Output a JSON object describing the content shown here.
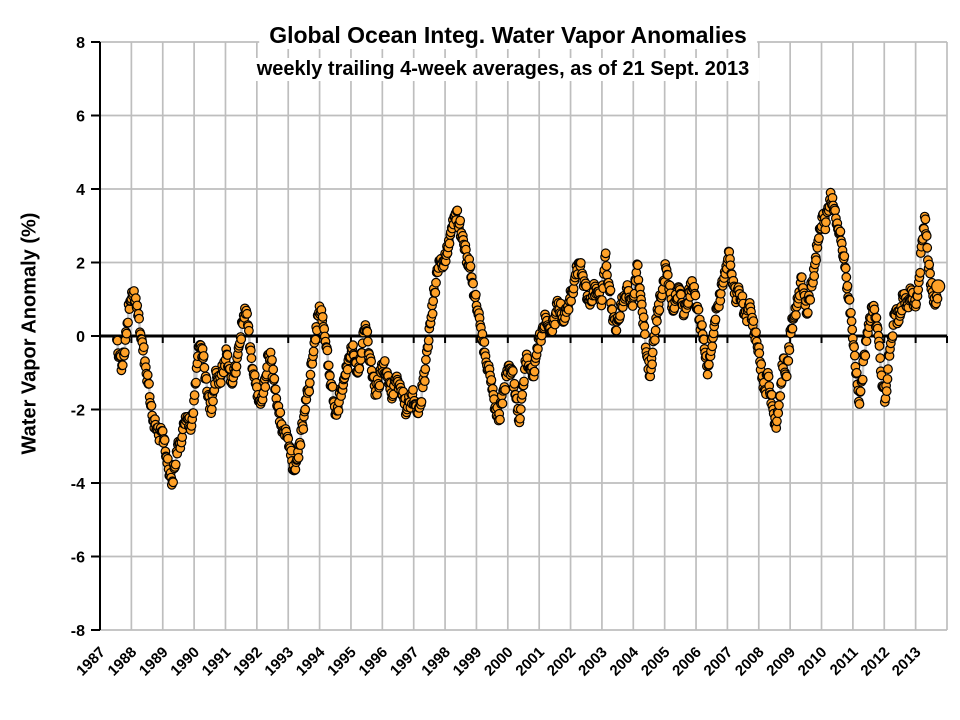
{
  "chart_data": {
    "type": "scatter",
    "title": "Global Ocean Integ. Water Vapor Anomalies",
    "subtitle": "weekly trailing 4-week averages, as of 21 Sept. 2013",
    "ylabel": "Water Vapor Anomaly (%)",
    "xlabel": "",
    "xlim": [
      1987,
      2014
    ],
    "ylim": [
      -8,
      8
    ],
    "ytick_step": 2,
    "ytick_labels": [
      "8",
      "6",
      "4",
      "2",
      "0",
      "-2",
      "-4",
      "-6",
      "-8"
    ],
    "xtick_labels": [
      "1987",
      "1988",
      "1989",
      "1990",
      "1991",
      "1992",
      "1993",
      "1994",
      "1995",
      "1996",
      "1997",
      "1998",
      "1999",
      "2000",
      "2001",
      "2002",
      "2003",
      "2004",
      "2005",
      "2006",
      "2007",
      "2008",
      "2009",
      "2010",
      "2011",
      "2012",
      "2013"
    ],
    "grid": true,
    "legend": "none",
    "series_name": "weekly trailing 4-week average water vapor anomaly",
    "points": [
      [
        1987.54,
        -0.1
      ],
      [
        1987.62,
        -0.55
      ],
      [
        1987.7,
        -0.8
      ],
      [
        1987.79,
        -0.45
      ],
      [
        1987.87,
        0.35
      ],
      [
        1987.96,
        0.95
      ],
      [
        1988.04,
        1.1
      ],
      [
        1988.12,
        0.95
      ],
      [
        1988.21,
        0.55
      ],
      [
        1988.29,
        0.05
      ],
      [
        1988.37,
        -0.4
      ],
      [
        1988.46,
        -0.85
      ],
      [
        1988.54,
        -1.3
      ],
      [
        1988.62,
        -1.9
      ],
      [
        1988.71,
        -2.3
      ],
      [
        1988.79,
        -2.55
      ],
      [
        1988.87,
        -2.7
      ],
      [
        1988.96,
        -2.6
      ],
      [
        1989.04,
        -2.8
      ],
      [
        1989.12,
        -3.3
      ],
      [
        1989.21,
        -3.8
      ],
      [
        1989.29,
        -4.05
      ],
      [
        1989.37,
        -3.6
      ],
      [
        1989.46,
        -3.2
      ],
      [
        1989.54,
        -2.9
      ],
      [
        1989.62,
        -2.75
      ],
      [
        1989.71,
        -2.4
      ],
      [
        1989.79,
        -2.2
      ],
      [
        1989.87,
        -2.5
      ],
      [
        1989.96,
        -2.1
      ],
      [
        1990.04,
        -1.3
      ],
      [
        1990.12,
        -0.55
      ],
      [
        1990.21,
        -0.25
      ],
      [
        1990.29,
        -0.6
      ],
      [
        1990.37,
        -1.1
      ],
      [
        1990.46,
        -1.6
      ],
      [
        1990.54,
        -2.1
      ],
      [
        1990.62,
        -1.5
      ],
      [
        1990.71,
        -1.0
      ],
      [
        1990.79,
        -1.3
      ],
      [
        1990.87,
        -1.05
      ],
      [
        1990.96,
        -0.7
      ],
      [
        1991.04,
        -0.5
      ],
      [
        1991.12,
        -0.9
      ],
      [
        1991.21,
        -1.3
      ],
      [
        1991.29,
        -1.0
      ],
      [
        1991.37,
        -0.6
      ],
      [
        1991.46,
        -0.2
      ],
      [
        1991.54,
        0.35
      ],
      [
        1991.62,
        0.75
      ],
      [
        1991.71,
        0.3
      ],
      [
        1991.79,
        -0.3
      ],
      [
        1991.87,
        -0.9
      ],
      [
        1991.96,
        -1.3
      ],
      [
        1992.04,
        -1.6
      ],
      [
        1992.12,
        -1.85
      ],
      [
        1992.21,
        -1.55
      ],
      [
        1992.29,
        -1.1
      ],
      [
        1992.37,
        -0.5
      ],
      [
        1992.46,
        -0.7
      ],
      [
        1992.54,
        -1.2
      ],
      [
        1992.62,
        -1.7
      ],
      [
        1992.71,
        -2.1
      ],
      [
        1992.79,
        -2.4
      ],
      [
        1992.87,
        -2.6
      ],
      [
        1992.96,
        -2.75
      ],
      [
        1993.04,
        -3.0
      ],
      [
        1993.12,
        -3.4
      ],
      [
        1993.21,
        -3.65
      ],
      [
        1993.29,
        -3.35
      ],
      [
        1993.37,
        -2.9
      ],
      [
        1993.46,
        -2.45
      ],
      [
        1993.54,
        -2.0
      ],
      [
        1993.62,
        -1.55
      ],
      [
        1993.71,
        -1.05
      ],
      [
        1993.79,
        -0.55
      ],
      [
        1993.87,
        -0.1
      ],
      [
        1993.96,
        0.55
      ],
      [
        1994.04,
        0.65
      ],
      [
        1994.12,
        0.25
      ],
      [
        1994.21,
        -0.3
      ],
      [
        1994.29,
        -0.8
      ],
      [
        1994.37,
        -1.3
      ],
      [
        1994.46,
        -1.8
      ],
      [
        1994.54,
        -2.15
      ],
      [
        1994.62,
        -1.8
      ],
      [
        1994.71,
        -1.45
      ],
      [
        1994.79,
        -1.15
      ],
      [
        1994.87,
        -0.85
      ],
      [
        1994.96,
        -0.6
      ],
      [
        1995.04,
        -0.35
      ],
      [
        1995.12,
        -0.7
      ],
      [
        1995.21,
        -1.0
      ],
      [
        1995.29,
        -0.6
      ],
      [
        1995.37,
        -0.2
      ],
      [
        1995.46,
        0.3
      ],
      [
        1995.54,
        -0.15
      ],
      [
        1995.62,
        -0.6
      ],
      [
        1995.71,
        -1.1
      ],
      [
        1995.79,
        -1.5
      ],
      [
        1995.87,
        -1.3
      ],
      [
        1995.96,
        -1.0
      ],
      [
        1996.04,
        -0.75
      ],
      [
        1996.12,
        -1.0
      ],
      [
        1996.21,
        -1.3
      ],
      [
        1996.29,
        -1.55
      ],
      [
        1996.37,
        -1.35
      ],
      [
        1996.46,
        -1.1
      ],
      [
        1996.54,
        -1.35
      ],
      [
        1996.62,
        -1.6
      ],
      [
        1996.71,
        -1.85
      ],
      [
        1996.79,
        -2.0
      ],
      [
        1996.87,
        -1.8
      ],
      [
        1996.96,
        -1.6
      ],
      [
        1997.04,
        -1.85
      ],
      [
        1997.12,
        -2.1
      ],
      [
        1997.21,
        -1.8
      ],
      [
        1997.29,
        -1.4
      ],
      [
        1997.37,
        -0.9
      ],
      [
        1997.46,
        -0.3
      ],
      [
        1997.54,
        0.35
      ],
      [
        1997.62,
        0.95
      ],
      [
        1997.71,
        1.45
      ],
      [
        1997.79,
        1.85
      ],
      [
        1997.87,
        2.1
      ],
      [
        1997.96,
        1.9
      ],
      [
        1998.04,
        2.2
      ],
      [
        1998.12,
        2.6
      ],
      [
        1998.21,
        2.95
      ],
      [
        1998.29,
        3.25
      ],
      [
        1998.37,
        3.4
      ],
      [
        1998.46,
        3.05
      ],
      [
        1998.54,
        2.65
      ],
      [
        1998.62,
        2.35
      ],
      [
        1998.71,
        2.15
      ],
      [
        1998.79,
        1.85
      ],
      [
        1998.87,
        1.45
      ],
      [
        1998.96,
        1.05
      ],
      [
        1999.04,
        0.7
      ],
      [
        1999.12,
        0.3
      ],
      [
        1999.21,
        -0.15
      ],
      [
        1999.29,
        -0.55
      ],
      [
        1999.37,
        -0.9
      ],
      [
        1999.46,
        -1.25
      ],
      [
        1999.54,
        -1.6
      ],
      [
        1999.62,
        -2.0
      ],
      [
        1999.71,
        -2.3
      ],
      [
        1999.79,
        -1.85
      ],
      [
        1999.87,
        -1.45
      ],
      [
        1999.96,
        -1.1
      ],
      [
        2000.04,
        -0.8
      ],
      [
        2000.12,
        -1.0
      ],
      [
        2000.21,
        -1.3
      ],
      [
        2000.29,
        -1.7
      ],
      [
        2000.37,
        -2.35
      ],
      [
        2000.46,
        -1.6
      ],
      [
        2000.54,
        -0.9
      ],
      [
        2000.62,
        -0.6
      ],
      [
        2000.71,
        -0.9
      ],
      [
        2000.79,
        -1.1
      ],
      [
        2000.87,
        -0.7
      ],
      [
        2000.96,
        -0.35
      ],
      [
        2001.04,
        -0.05
      ],
      [
        2001.12,
        0.25
      ],
      [
        2001.21,
        0.5
      ],
      [
        2001.29,
        0.25
      ],
      [
        2001.37,
        0.1
      ],
      [
        2001.46,
        0.35
      ],
      [
        2001.54,
        0.65
      ],
      [
        2001.62,
        0.9
      ],
      [
        2001.71,
        0.6
      ],
      [
        2001.79,
        0.4
      ],
      [
        2001.87,
        0.65
      ],
      [
        2001.96,
        0.95
      ],
      [
        2002.04,
        1.2
      ],
      [
        2002.12,
        1.5
      ],
      [
        2002.21,
        1.8
      ],
      [
        2002.29,
        1.95
      ],
      [
        2002.37,
        1.7
      ],
      [
        2002.46,
        1.4
      ],
      [
        2002.54,
        1.1
      ],
      [
        2002.62,
        0.85
      ],
      [
        2002.71,
        1.1
      ],
      [
        2002.79,
        1.35
      ],
      [
        2002.87,
        1.15
      ],
      [
        2002.96,
        0.95
      ],
      [
        2003.04,
        1.3
      ],
      [
        2003.12,
        2.25
      ],
      [
        2003.21,
        1.45
      ],
      [
        2003.29,
        0.9
      ],
      [
        2003.37,
        0.5
      ],
      [
        2003.46,
        0.15
      ],
      [
        2003.54,
        0.45
      ],
      [
        2003.62,
        0.8
      ],
      [
        2003.71,
        1.1
      ],
      [
        2003.79,
        1.3
      ],
      [
        2003.87,
        1.05
      ],
      [
        2003.96,
        0.85
      ],
      [
        2004.04,
        1.15
      ],
      [
        2004.12,
        1.95
      ],
      [
        2004.21,
        1.3
      ],
      [
        2004.29,
        0.65
      ],
      [
        2004.37,
        0.05
      ],
      [
        2004.46,
        -0.6
      ],
      [
        2004.54,
        -1.1
      ],
      [
        2004.62,
        -0.45
      ],
      [
        2004.71,
        0.15
      ],
      [
        2004.79,
        0.65
      ],
      [
        2004.87,
        1.05
      ],
      [
        2004.96,
        1.5
      ],
      [
        2005.04,
        1.85
      ],
      [
        2005.12,
        1.4
      ],
      [
        2005.21,
        1.0
      ],
      [
        2005.29,
        0.7
      ],
      [
        2005.37,
        1.0
      ],
      [
        2005.46,
        1.3
      ],
      [
        2005.54,
        0.9
      ],
      [
        2005.62,
        0.6
      ],
      [
        2005.71,
        0.9
      ],
      [
        2005.79,
        1.2
      ],
      [
        2005.87,
        1.5
      ],
      [
        2005.96,
        1.15
      ],
      [
        2006.04,
        0.8
      ],
      [
        2006.12,
        0.45
      ],
      [
        2006.21,
        0.05
      ],
      [
        2006.29,
        -0.45
      ],
      [
        2006.37,
        -1.05
      ],
      [
        2006.46,
        -0.55
      ],
      [
        2006.54,
        -0.05
      ],
      [
        2006.62,
        0.45
      ],
      [
        2006.71,
        0.85
      ],
      [
        2006.79,
        1.15
      ],
      [
        2006.87,
        1.45
      ],
      [
        2006.96,
        1.9
      ],
      [
        2007.04,
        2.3
      ],
      [
        2007.12,
        1.7
      ],
      [
        2007.21,
        1.35
      ],
      [
        2007.29,
        1.0
      ],
      [
        2007.37,
        1.25
      ],
      [
        2007.46,
        0.95
      ],
      [
        2007.54,
        0.65
      ],
      [
        2007.62,
        0.4
      ],
      [
        2007.71,
        0.9
      ],
      [
        2007.79,
        0.5
      ],
      [
        2007.87,
        0.1
      ],
      [
        2007.96,
        -0.3
      ],
      [
        2008.04,
        -0.7
      ],
      [
        2008.12,
        -1.1
      ],
      [
        2008.21,
        -1.5
      ],
      [
        2008.29,
        -1.0
      ],
      [
        2008.37,
        -1.6
      ],
      [
        2008.46,
        -2.0
      ],
      [
        2008.54,
        -2.4
      ],
      [
        2008.62,
        -2.1
      ],
      [
        2008.71,
        -1.3
      ],
      [
        2008.79,
        -0.6
      ],
      [
        2008.87,
        -1.1
      ],
      [
        2008.96,
        -0.3
      ],
      [
        2009.04,
        0.2
      ],
      [
        2009.12,
        0.5
      ],
      [
        2009.21,
        0.8
      ],
      [
        2009.29,
        1.2
      ],
      [
        2009.37,
        1.6
      ],
      [
        2009.46,
        1.1
      ],
      [
        2009.54,
        0.6
      ],
      [
        2009.62,
        1.0
      ],
      [
        2009.71,
        1.5
      ],
      [
        2009.79,
        1.95
      ],
      [
        2009.87,
        2.4
      ],
      [
        2009.96,
        2.9
      ],
      [
        2010.04,
        3.3
      ],
      [
        2010.12,
        2.9
      ],
      [
        2010.21,
        3.5
      ],
      [
        2010.29,
        3.9
      ],
      [
        2010.37,
        3.55
      ],
      [
        2010.46,
        3.2
      ],
      [
        2010.54,
        2.9
      ],
      [
        2010.62,
        2.6
      ],
      [
        2010.71,
        2.1
      ],
      [
        2010.79,
        1.6
      ],
      [
        2010.87,
        1.0
      ],
      [
        2010.96,
        0.4
      ],
      [
        2011.04,
        -0.3
      ],
      [
        2011.12,
        -1.0
      ],
      [
        2011.21,
        -1.85
      ],
      [
        2011.29,
        -1.2
      ],
      [
        2011.37,
        -0.5
      ],
      [
        2011.46,
        0.1
      ],
      [
        2011.54,
        0.5
      ],
      [
        2011.62,
        0.8
      ],
      [
        2011.71,
        0.5
      ],
      [
        2011.79,
        0.2
      ],
      [
        2011.87,
        -0.6
      ],
      [
        2011.96,
        -1.4
      ],
      [
        2012.04,
        -1.7
      ],
      [
        2012.12,
        -0.9
      ],
      [
        2012.21,
        -0.2
      ],
      [
        2012.29,
        0.3
      ],
      [
        2012.37,
        0.7
      ],
      [
        2012.46,
        0.4
      ],
      [
        2012.54,
        0.8
      ],
      [
        2012.62,
        1.1
      ],
      [
        2012.71,
        0.8
      ],
      [
        2012.79,
        1.0
      ],
      [
        2012.87,
        1.25
      ],
      [
        2012.96,
        0.9
      ],
      [
        2013.04,
        1.1
      ],
      [
        2013.12,
        1.6
      ],
      [
        2013.21,
        2.6
      ],
      [
        2013.29,
        3.25
      ],
      [
        2013.37,
        2.4
      ],
      [
        2013.46,
        1.7
      ],
      [
        2013.54,
        1.2
      ],
      [
        2013.62,
        0.85
      ],
      [
        2013.72,
        1.35
      ]
    ],
    "latest_point": [
      2013.72,
      1.35
    ],
    "style": {
      "marker_fill": "#FFA128",
      "marker_edge": "#000000",
      "connector_line": "#C9C9C9",
      "grid_color": "#BEBEBE",
      "zero_line_color": "#000000",
      "axis_color": "#000000",
      "background": "#FFFFFF"
    }
  }
}
